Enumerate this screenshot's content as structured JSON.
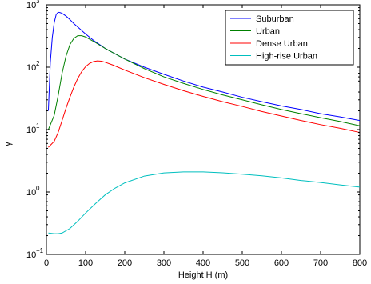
{
  "chart_data": {
    "type": "line",
    "xlabel": "Height H (m)",
    "ylabel": "γ",
    "xlim": [
      0,
      800
    ],
    "ylim": [
      0.1,
      1000
    ],
    "yscale": "log",
    "xticks": [
      0,
      100,
      200,
      300,
      400,
      500,
      600,
      700,
      800
    ],
    "yticks": [
      {
        "value": 0.1,
        "base": "10",
        "exp": "−1"
      },
      {
        "value": 1,
        "base": "10",
        "exp": "0"
      },
      {
        "value": 10,
        "base": "10",
        "exp": "1"
      },
      {
        "value": 100,
        "base": "10",
        "exp": "2"
      },
      {
        "value": 1000,
        "base": "10",
        "exp": "3"
      }
    ],
    "grid": false,
    "legend_position": "top-right",
    "series": [
      {
        "name": "Suburban",
        "color": "#0000ff",
        "x": [
          5,
          10,
          15,
          20,
          25,
          30,
          35,
          40,
          50,
          60,
          70,
          80,
          100,
          120,
          150,
          200,
          250,
          300,
          350,
          400,
          450,
          500,
          550,
          600,
          650,
          700,
          750,
          800
        ],
        "y": [
          20,
          120,
          300,
          520,
          700,
          760,
          750,
          730,
          660,
          580,
          500,
          440,
          340,
          270,
          200,
          135,
          100,
          77,
          60,
          48,
          40,
          33,
          28,
          24,
          21,
          18,
          16,
          14
        ]
      },
      {
        "name": "Urban",
        "color": "#008000",
        "x": [
          5,
          20,
          30,
          40,
          50,
          60,
          70,
          80,
          90,
          100,
          120,
          150,
          200,
          250,
          300,
          350,
          400,
          450,
          500,
          550,
          600,
          650,
          700,
          750,
          800
        ],
        "y": [
          10,
          17,
          35,
          80,
          150,
          230,
          290,
          320,
          320,
          305,
          260,
          200,
          135,
          95,
          70,
          55,
          44,
          36,
          30,
          25,
          21,
          18,
          15.5,
          13.5,
          11.5
        ]
      },
      {
        "name": "Dense Urban",
        "color": "#ff0000",
        "x": [
          5,
          20,
          30,
          40,
          50,
          60,
          70,
          80,
          90,
          100,
          110,
          120,
          130,
          140,
          150,
          170,
          200,
          250,
          300,
          350,
          400,
          450,
          500,
          550,
          600,
          650,
          700,
          750,
          800
        ],
        "y": [
          5.2,
          6.5,
          9,
          14,
          22,
          33,
          48,
          66,
          85,
          102,
          115,
          123,
          126,
          125,
          120,
          108,
          90,
          68,
          53,
          42,
          34,
          28,
          23.5,
          19.5,
          16.5,
          14,
          12,
          10.5,
          9
        ]
      },
      {
        "name": "High-rise Urban",
        "color": "#00bfbf",
        "x": [
          5,
          20,
          30,
          40,
          60,
          80,
          100,
          125,
          150,
          175,
          200,
          250,
          300,
          350,
          400,
          450,
          500,
          550,
          600,
          650,
          700,
          750,
          800
        ],
        "y": [
          0.22,
          0.215,
          0.215,
          0.22,
          0.26,
          0.34,
          0.46,
          0.65,
          0.9,
          1.15,
          1.4,
          1.8,
          2.02,
          2.1,
          2.1,
          2.03,
          1.93,
          1.82,
          1.68,
          1.53,
          1.42,
          1.3,
          1.2
        ]
      }
    ]
  }
}
